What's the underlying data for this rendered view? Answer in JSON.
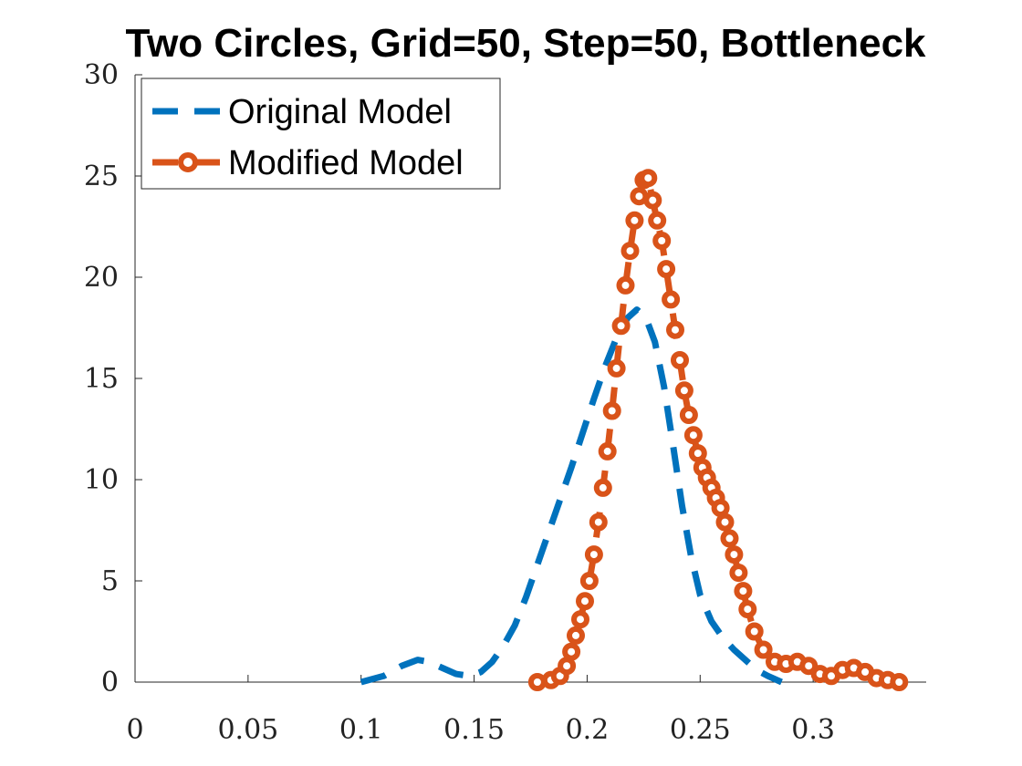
{
  "chart_data": {
    "type": "line",
    "title": "Two Circles, Grid=50, Step=50, Bottleneck",
    "xlabel": "",
    "ylabel": "",
    "xlim": [
      0,
      0.35
    ],
    "ylim": [
      0,
      30
    ],
    "x_ticks": [
      "0",
      "0.05",
      "0.1",
      "0.15",
      "0.2",
      "0.25",
      "0.3"
    ],
    "y_ticks": [
      "0",
      "5",
      "10",
      "15",
      "20",
      "25",
      "30"
    ],
    "grid": false,
    "legend_position": "top-left",
    "series": [
      {
        "name": "Original Model",
        "color": "#0072BD",
        "style": "dashed",
        "x": [
          0.1,
          0.11,
          0.118,
          0.125,
          0.13,
          0.136,
          0.142,
          0.148,
          0.153,
          0.158,
          0.163,
          0.168,
          0.173,
          0.178,
          0.183,
          0.188,
          0.193,
          0.198,
          0.203,
          0.208,
          0.213,
          0.218,
          0.222,
          0.226,
          0.23,
          0.234,
          0.238,
          0.242,
          0.246,
          0.25,
          0.255,
          0.26,
          0.265,
          0.27,
          0.275,
          0.28,
          0.286
        ],
        "y": [
          0.0,
          0.3,
          0.8,
          1.1,
          1.0,
          0.7,
          0.4,
          0.3,
          0.5,
          1.0,
          1.8,
          2.8,
          4.2,
          5.8,
          7.4,
          9.0,
          10.6,
          12.3,
          14.0,
          15.6,
          17.0,
          18.0,
          18.4,
          18.0,
          16.8,
          14.6,
          11.7,
          8.7,
          6.2,
          4.3,
          3.0,
          2.2,
          1.6,
          1.1,
          0.6,
          0.3,
          0.0
        ]
      },
      {
        "name": "Modified Model",
        "color": "#D95319",
        "style": "dashed-circle",
        "x": [
          0.178,
          0.184,
          0.188,
          0.191,
          0.193,
          0.195,
          0.197,
          0.199,
          0.201,
          0.203,
          0.205,
          0.207,
          0.209,
          0.211,
          0.213,
          0.215,
          0.217,
          0.219,
          0.221,
          0.223,
          0.225,
          0.227,
          0.229,
          0.231,
          0.233,
          0.235,
          0.237,
          0.239,
          0.241,
          0.243,
          0.245,
          0.247,
          0.249,
          0.251,
          0.253,
          0.255,
          0.257,
          0.259,
          0.261,
          0.263,
          0.265,
          0.267,
          0.269,
          0.271,
          0.274,
          0.278,
          0.283,
          0.288,
          0.293,
          0.298,
          0.303,
          0.308,
          0.313,
          0.318,
          0.323,
          0.328,
          0.333,
          0.338
        ],
        "y": [
          0.0,
          0.1,
          0.3,
          0.8,
          1.5,
          2.3,
          3.1,
          4.0,
          5.0,
          6.3,
          7.9,
          9.6,
          11.4,
          13.4,
          15.5,
          17.6,
          19.6,
          21.3,
          22.8,
          24.0,
          24.8,
          24.9,
          23.8,
          22.8,
          21.8,
          20.4,
          18.9,
          17.4,
          15.9,
          14.4,
          13.2,
          12.2,
          11.3,
          10.6,
          10.1,
          9.6,
          9.1,
          8.6,
          7.9,
          7.1,
          6.3,
          5.4,
          4.5,
          3.6,
          2.5,
          1.6,
          1.0,
          0.9,
          1.0,
          0.8,
          0.4,
          0.3,
          0.6,
          0.7,
          0.5,
          0.2,
          0.1,
          0.0
        ]
      }
    ]
  }
}
